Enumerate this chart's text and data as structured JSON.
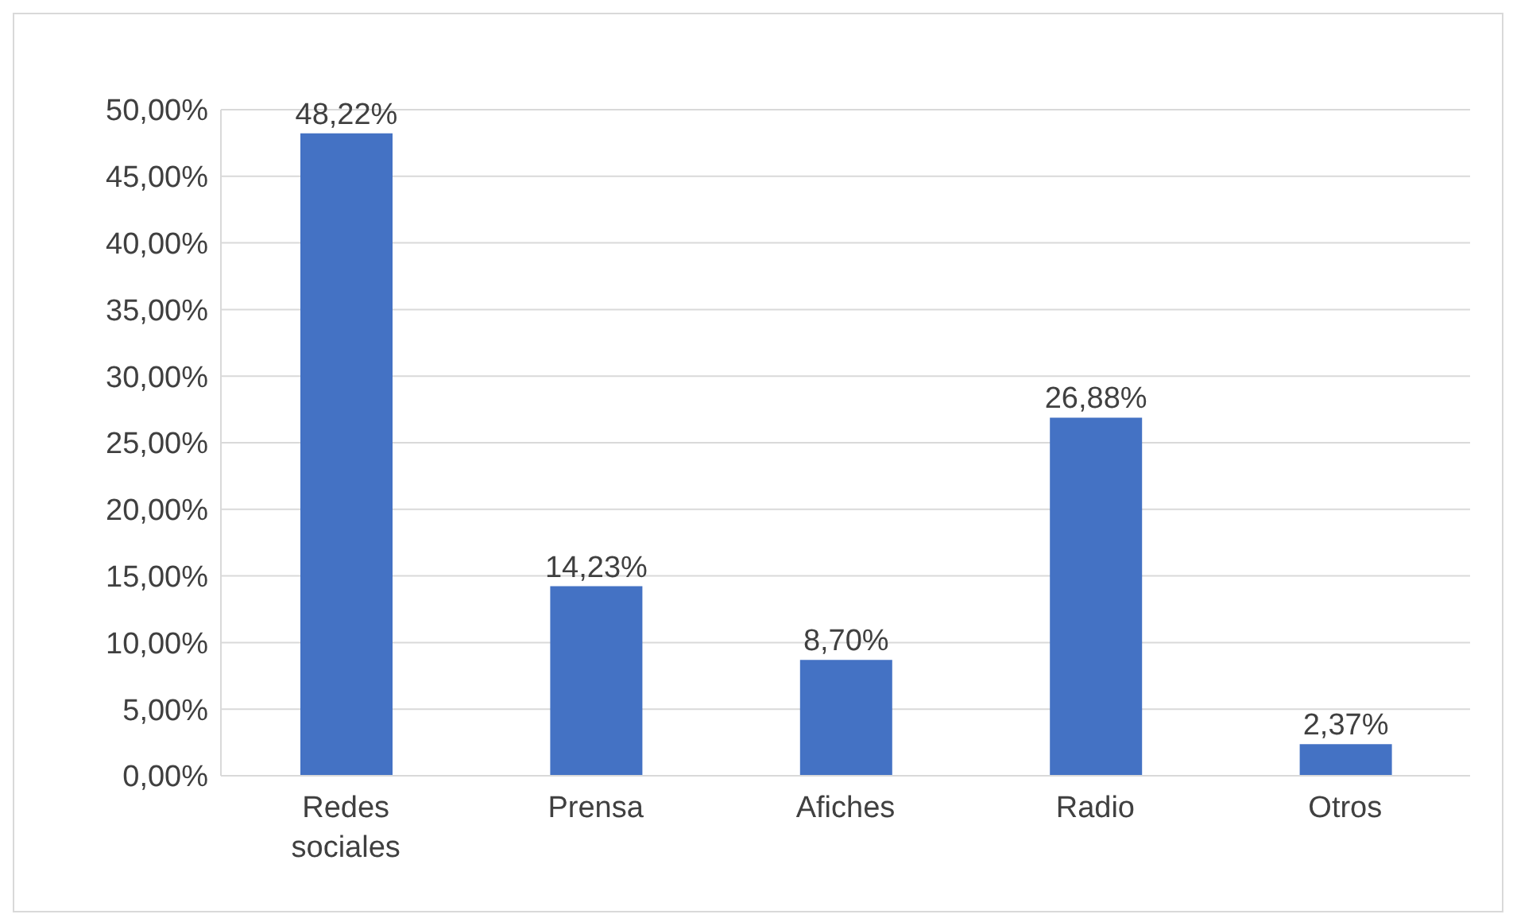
{
  "chart_data": {
    "type": "bar",
    "categories": [
      "Redes sociales",
      "Prensa",
      "Afiches",
      "Radio",
      "Otros"
    ],
    "values": [
      48.22,
      14.23,
      8.7,
      26.88,
      2.37
    ],
    "value_labels": [
      "48,22%",
      "14,23%",
      "8,70%",
      "26,88%",
      "2,37%"
    ],
    "color": "#4472c4",
    "ylim": [
      0,
      50
    ],
    "yticks": [
      {
        "value": 0,
        "label": "0,00%"
      },
      {
        "value": 5,
        "label": "5,00%"
      },
      {
        "value": 10,
        "label": "10,00%"
      },
      {
        "value": 15,
        "label": "15,00%"
      },
      {
        "value": 20,
        "label": "20,00%"
      },
      {
        "value": 25,
        "label": "25,00%"
      },
      {
        "value": 30,
        "label": "30,00%"
      },
      {
        "value": 35,
        "label": "35,00%"
      },
      {
        "value": 40,
        "label": "40,00%"
      },
      {
        "value": 45,
        "label": "45,00%"
      },
      {
        "value": 50,
        "label": "50,00%"
      }
    ],
    "grid": "y",
    "legend": false
  }
}
